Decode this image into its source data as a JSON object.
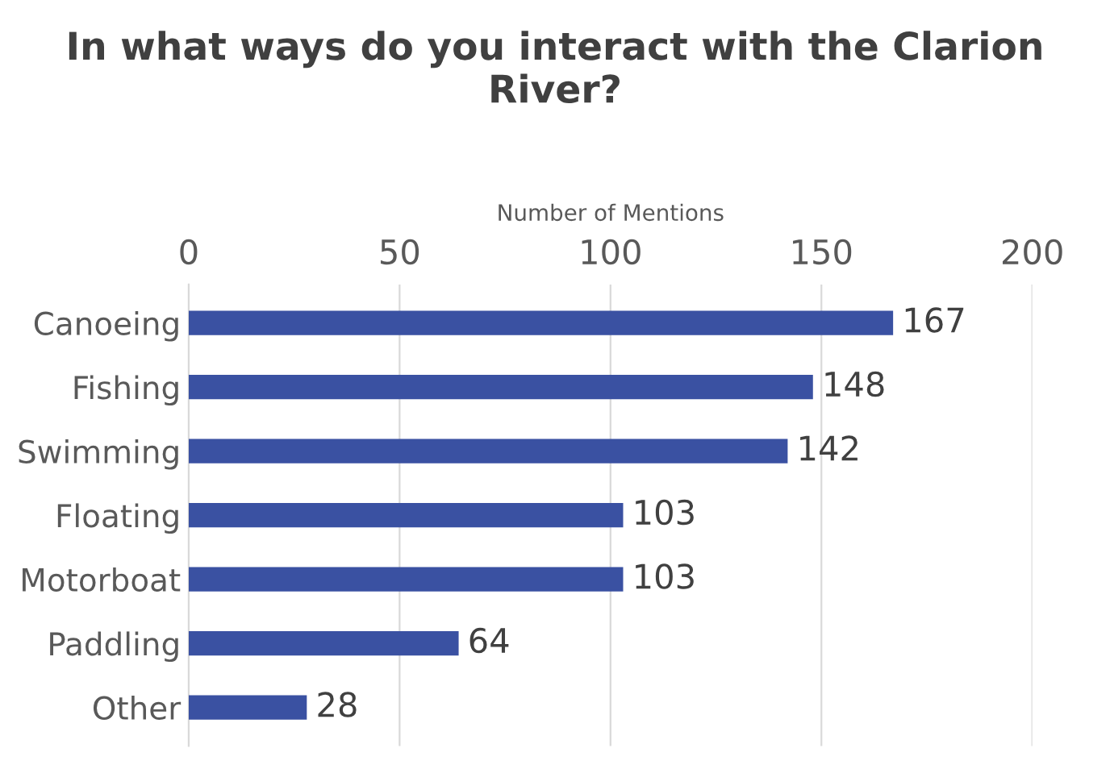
{
  "chart_data": {
    "type": "bar",
    "orientation": "horizontal",
    "title": "In what ways do you interact with the Clarion River?",
    "xlabel": "Number of Mentions",
    "categories": [
      "Canoeing",
      "Fishing",
      "Swimming",
      "Floating",
      "Motorboat",
      "Paddling",
      "Other"
    ],
    "values": [
      167,
      148,
      142,
      103,
      103,
      64,
      28
    ],
    "color": "#3a51a2",
    "xlim": [
      0,
      200
    ],
    "xticks": [
      0,
      50,
      100,
      150,
      200
    ],
    "grid": "x",
    "data_labels": true
  }
}
